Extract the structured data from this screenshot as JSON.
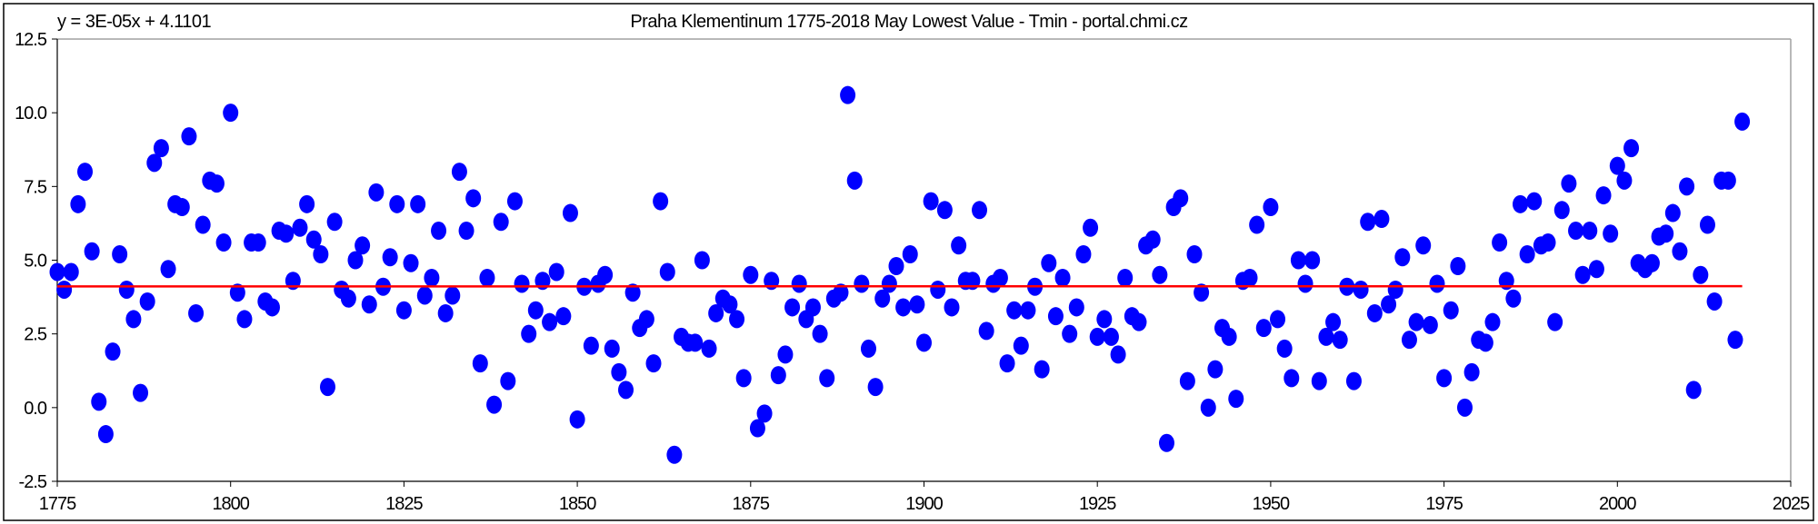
{
  "chart_data": {
    "type": "scatter",
    "title": "Praha Klementinum 1775-2018 May Lowest Value - Tmin - portal.chmi.cz",
    "trendline_label": "y = 3E-05x + 4.1101",
    "trendline": {
      "slope": 3e-05,
      "intercept": 4.1101,
      "color": "#ff0000"
    },
    "marker_color": "#0000ff",
    "xlabel": "",
    "ylabel": "",
    "xlim": [
      1775,
      2025
    ],
    "ylim": [
      -2.5,
      12.5
    ],
    "xticks": [
      "1775",
      "1800",
      "1825",
      "1850",
      "1875",
      "1900",
      "1925",
      "1950",
      "1975",
      "2000",
      "2025"
    ],
    "yticks": [
      "12.5",
      "10.0",
      "7.5",
      "5.0",
      "2.5",
      "0.0",
      "-2.5"
    ],
    "x_start": 1775,
    "values": [
      4.6,
      4.0,
      4.6,
      6.9,
      8.0,
      5.3,
      0.2,
      -0.9,
      1.9,
      5.2,
      4.0,
      3.0,
      0.5,
      3.6,
      8.3,
      8.8,
      4.7,
      6.9,
      6.8,
      9.2,
      3.2,
      6.2,
      7.7,
      7.6,
      5.6,
      10.0,
      3.9,
      3.0,
      5.6,
      5.6,
      3.6,
      3.4,
      6.0,
      5.9,
      4.3,
      6.1,
      6.9,
      5.7,
      5.2,
      0.7,
      6.3,
      4.0,
      3.7,
      5.0,
      5.5,
      3.5,
      7.3,
      4.1,
      5.1,
      6.9,
      3.3,
      4.9,
      6.9,
      3.8,
      4.4,
      6.0,
      3.2,
      3.8,
      8.0,
      6.0,
      7.1,
      1.5,
      4.4,
      0.1,
      6.3,
      0.9,
      7.0,
      4.2,
      2.5,
      3.3,
      4.3,
      2.9,
      4.6,
      3.1,
      6.6,
      -0.4,
      4.1,
      2.1,
      4.2,
      4.5,
      2.0,
      1.2,
      0.6,
      3.9,
      2.7,
      3.0,
      1.5,
      7.0,
      4.6,
      -1.6,
      2.4,
      2.2,
      2.2,
      5.0,
      2.0,
      3.2,
      3.7,
      3.5,
      3.0,
      1.0,
      4.5,
      -0.7,
      -0.2,
      4.3,
      1.1,
      1.8,
      3.4,
      4.2,
      3.0,
      3.4,
      2.5,
      1.0,
      3.7,
      3.9,
      10.6,
      7.7,
      4.2,
      2.0,
      0.7,
      3.7,
      4.2,
      4.8,
      3.4,
      5.2,
      3.5,
      2.2,
      7.0,
      4.0,
      6.7,
      3.4,
      5.5,
      4.3,
      4.3,
      6.7,
      2.6,
      4.2,
      4.4,
      1.5,
      3.3,
      2.1,
      3.3,
      4.1,
      1.3,
      4.9,
      3.1,
      4.4,
      2.5,
      3.4,
      5.2,
      6.1,
      2.4,
      3.0,
      2.4,
      1.8,
      4.4,
      3.1,
      2.9,
      5.5,
      5.7,
      4.5,
      -1.2,
      6.8,
      7.1,
      0.9,
      5.2,
      3.9,
      0.0,
      1.3,
      2.7,
      2.4,
      0.3,
      4.3,
      4.4,
      6.2,
      2.7,
      6.8,
      3.0,
      2.0,
      1.0,
      5.0,
      4.2,
      5.0,
      0.9,
      2.4,
      2.9,
      2.3,
      4.1,
      0.9,
      4.0,
      6.3,
      3.2,
      6.4,
      3.5,
      4.0,
      5.1,
      2.3,
      2.9,
      5.5,
      2.8,
      4.2,
      1.0,
      3.3,
      4.8,
      0.0,
      1.2,
      2.3,
      2.2,
      2.9,
      5.6,
      4.3,
      3.7,
      6.9,
      5.2,
      7.0,
      5.5,
      5.6,
      2.9,
      6.7,
      7.6,
      6.0,
      4.5,
      6.0,
      4.7,
      7.2,
      5.9,
      8.2,
      7.7,
      8.8,
      4.9,
      4.7,
      4.9,
      5.8,
      5.9,
      6.6,
      5.3,
      7.5,
      0.6,
      4.5,
      6.2,
      3.6,
      7.7,
      7.7,
      2.3,
      9.7
    ]
  }
}
